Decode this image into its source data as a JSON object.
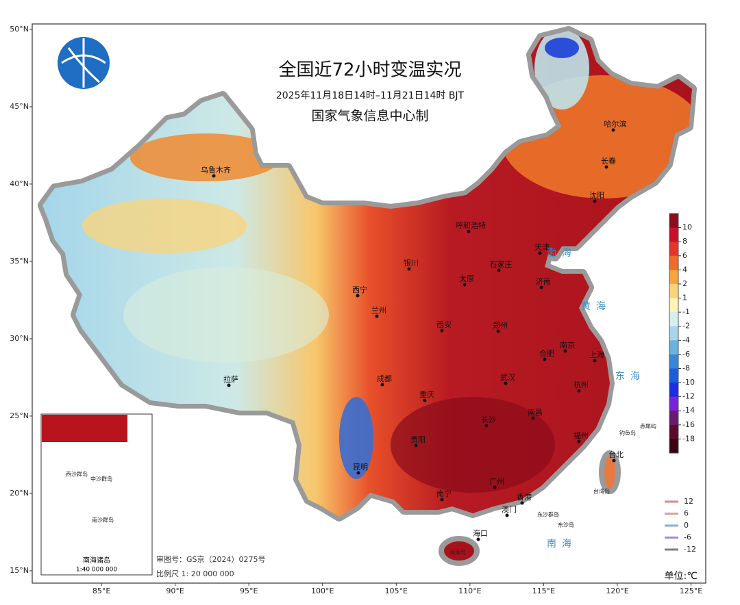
{
  "header": {
    "title": "全国近72小时变温实况",
    "period": "2025年11月18日14时–11月21日14时  BJT",
    "producer": "国家气象信息中心制"
  },
  "axes": {
    "xlim": [
      80.3,
      126
    ],
    "ylim": [
      14.2,
      50.35
    ],
    "lat_ticks": [
      {
        "value": 50,
        "label": "50°N"
      },
      {
        "value": 45,
        "label": "45°N"
      },
      {
        "value": 40,
        "label": "40°N"
      },
      {
        "value": 35,
        "label": "35°N"
      },
      {
        "value": 30,
        "label": "30°N"
      },
      {
        "value": 25,
        "label": "25°N"
      },
      {
        "value": 20,
        "label": "20°N"
      },
      {
        "value": 15,
        "label": "15°N"
      }
    ],
    "lon_ticks": [
      {
        "value": 85,
        "label": "85°E"
      },
      {
        "value": 90,
        "label": "90°E"
      },
      {
        "value": 95,
        "label": "95°E"
      },
      {
        "value": 100,
        "label": "100°E"
      },
      {
        "value": 105,
        "label": "105°E"
      },
      {
        "value": 110,
        "label": "110°E"
      },
      {
        "value": 115,
        "label": "115°E"
      },
      {
        "value": 120,
        "label": "120°E"
      },
      {
        "value": 125,
        "label": "125°E"
      }
    ]
  },
  "cities": [
    "乌鲁木齐",
    "哈尔滨",
    "长春",
    "沈阳",
    "呼和浩特",
    "天津",
    "石家庄",
    "银川",
    "太原",
    "济南",
    "西宁",
    "兰州",
    "西安",
    "郑州",
    "合肥",
    "南京",
    "上海",
    "成都",
    "武汉",
    "杭州",
    "拉萨",
    "重庆",
    "长沙",
    "南昌",
    "贵阳",
    "福州",
    "昆明",
    "南宁",
    "广州",
    "香港",
    "澳门",
    "海口",
    "台北",
    "海南岛",
    "台湾岛",
    "东沙群岛",
    "东沙岛",
    "钓鱼岛",
    "赤尾屿"
  ],
  "seas": [
    "渤海",
    "黄海",
    "东海",
    "南海"
  ],
  "colorbar": {
    "levels": [
      10,
      8,
      6,
      4,
      2,
      1,
      -1,
      -2,
      -4,
      -6,
      -8,
      -10,
      -12,
      -14,
      -16,
      -18
    ],
    "colors": [
      "#8e0a1e",
      "#c8102e",
      "#e3352b",
      "#f06a2a",
      "#f7a43e",
      "#fbd47c",
      "#fff3b8",
      "#d6eeee",
      "#a6d4ea",
      "#6cb0dc",
      "#3a86d2",
      "#1c5ed8",
      "#1a2de2",
      "#7a22d8",
      "#6a1b70",
      "#5a0a2a",
      "#380510"
    ]
  },
  "contour_legend": {
    "levels": [
      12,
      6,
      0,
      -6,
      -12
    ],
    "colors": [
      "#d98a8a",
      "#d9a0a0",
      "#7fb3e0",
      "#a58ad0",
      "#8a7a7a"
    ]
  },
  "inset": {
    "title": "南海诸岛",
    "scale": "1:40 000 000",
    "islands": [
      "西沙群岛",
      "中沙群岛",
      "南沙群岛"
    ]
  },
  "footer": {
    "approval": "审图号：GS京（2024）0275号",
    "scale": "比例尺 1: 20 000 000",
    "unit": "单位:℃"
  }
}
